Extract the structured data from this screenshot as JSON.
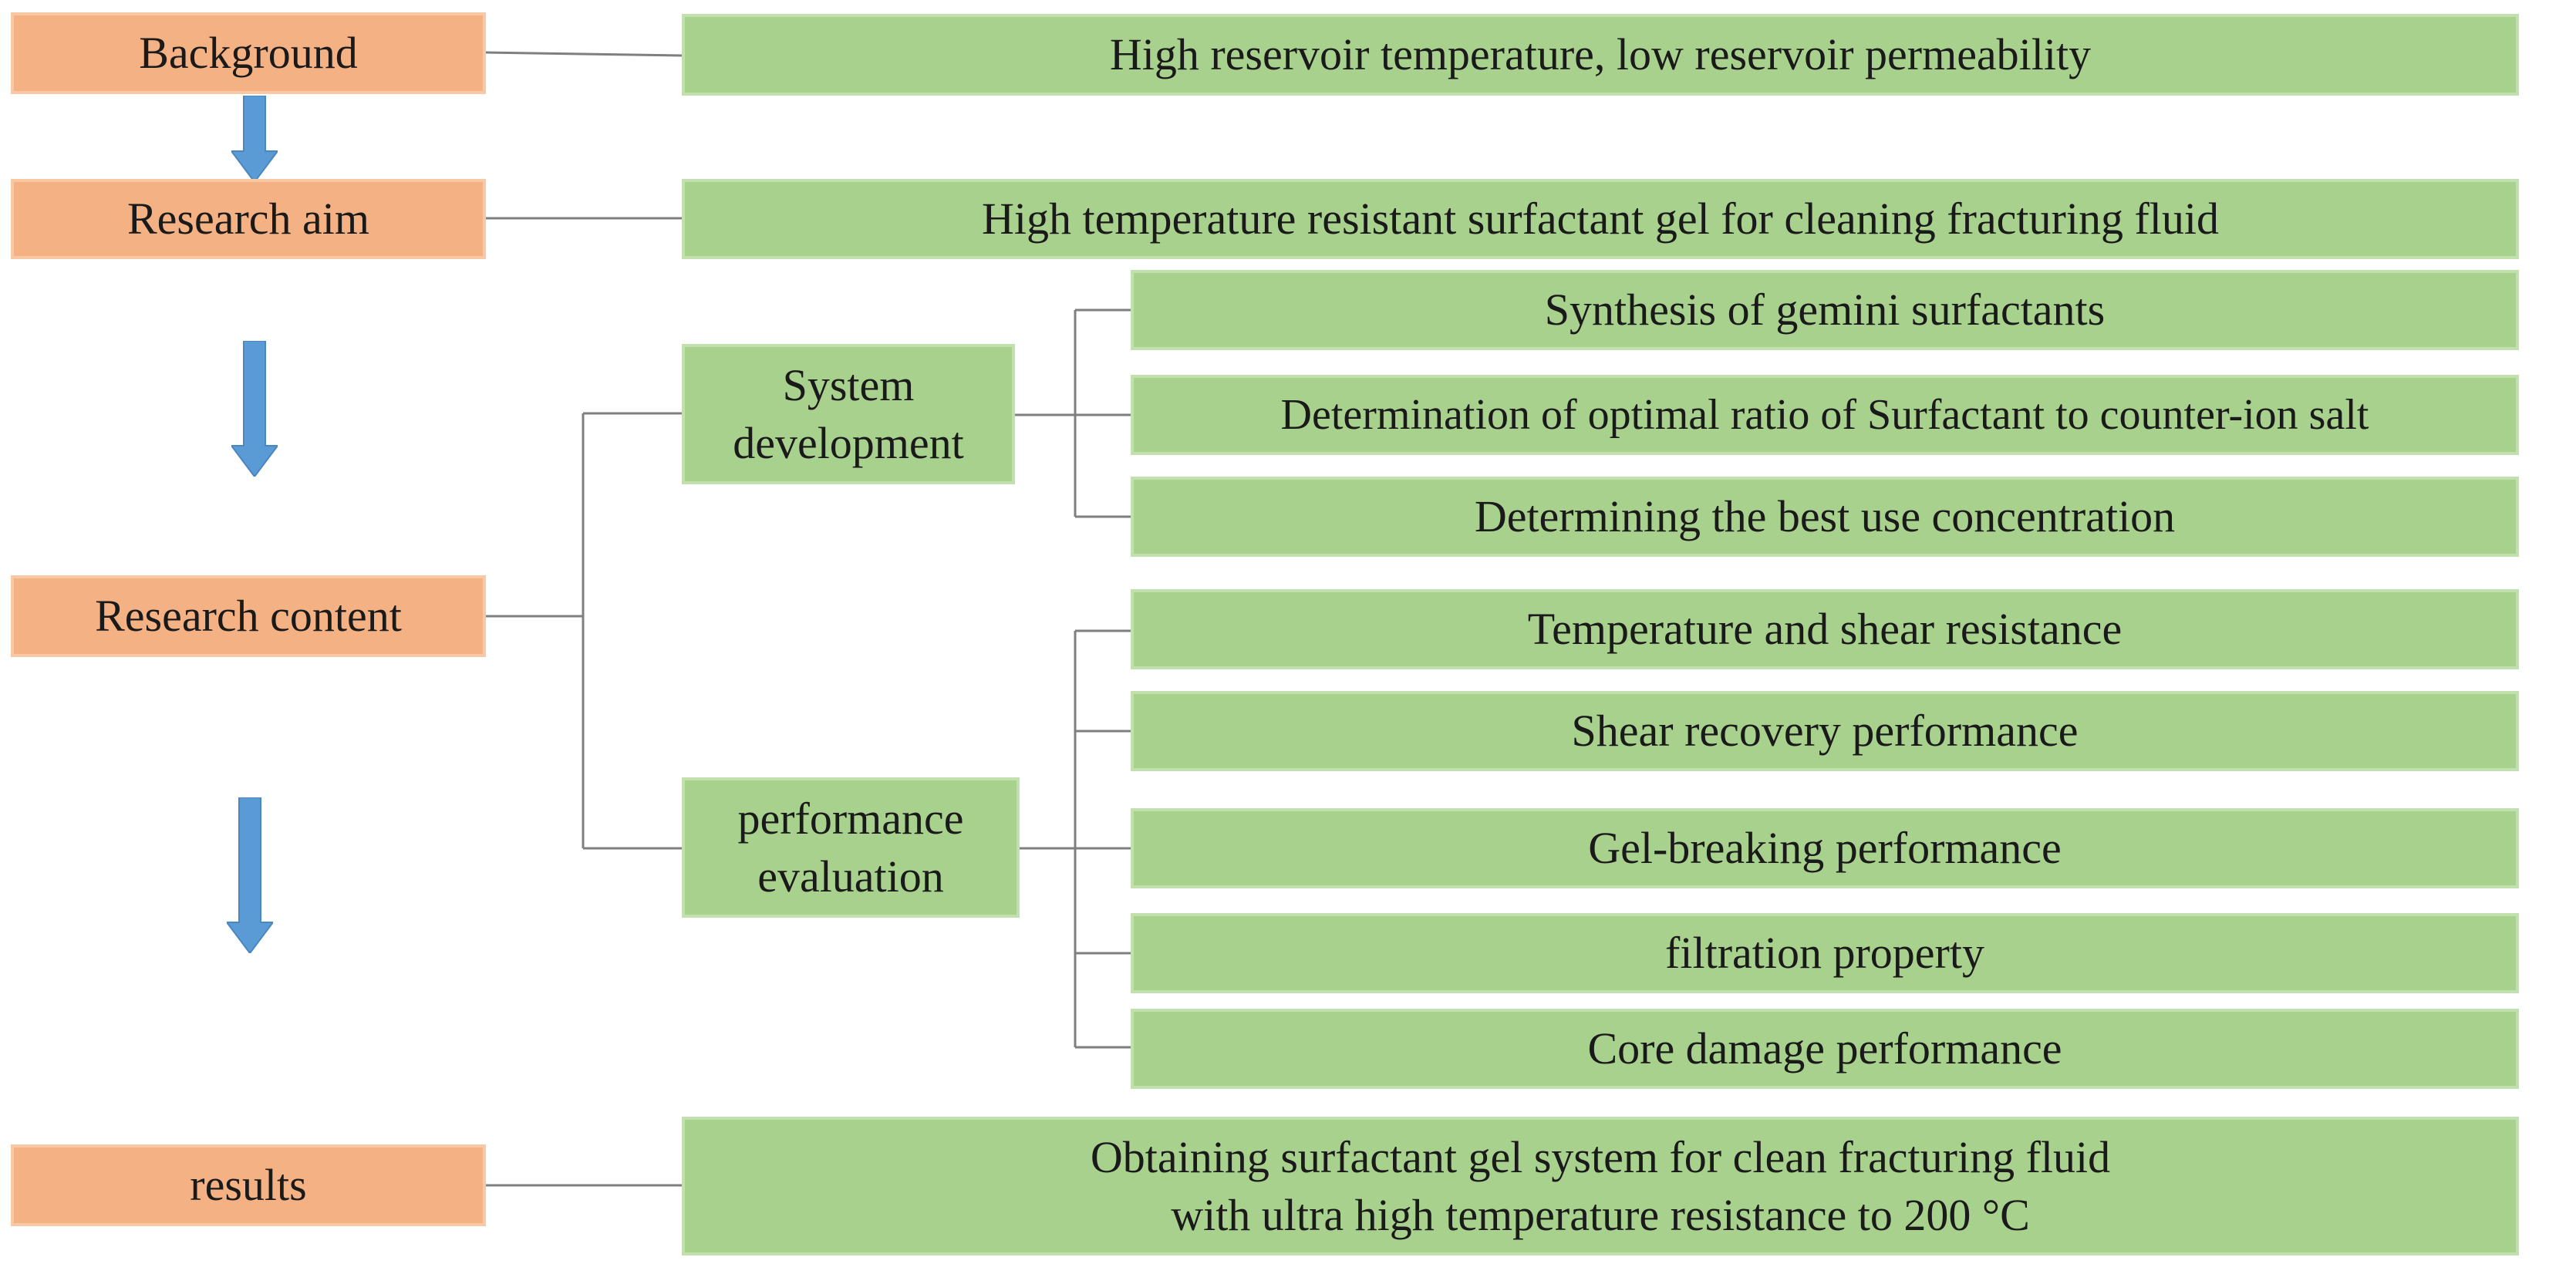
{
  "colors": {
    "stage_fill": "#f4b183",
    "detail_fill": "#a9d18e",
    "arrow": "#5b9bd5",
    "connector": "#7f7f7f"
  },
  "stages": {
    "background": "Background",
    "research_aim": "Research aim",
    "research_content": "Research content",
    "results": "results"
  },
  "details": {
    "background": "High reservoir temperature, low reservoir permeability",
    "research_aim": "High temperature resistant surfactant gel for cleaning fracturing fluid",
    "results_line1": "Obtaining surfactant gel system for clean fracturing fluid",
    "results_line2": "with ultra high temperature resistance to 200 °C"
  },
  "groups": {
    "system_development": {
      "line1": "System",
      "line2": "development",
      "items": [
        "Synthesis of gemini surfactants",
        "Determination of optimal ratio of Surfactant to counter-ion salt",
        "Determining the best use concentration"
      ]
    },
    "performance_evaluation": {
      "line1": "performance",
      "line2": "evaluation",
      "items": [
        "Temperature and shear resistance",
        "Shear recovery performance",
        "Gel-breaking performance",
        "filtration property",
        "Core damage performance"
      ]
    }
  }
}
